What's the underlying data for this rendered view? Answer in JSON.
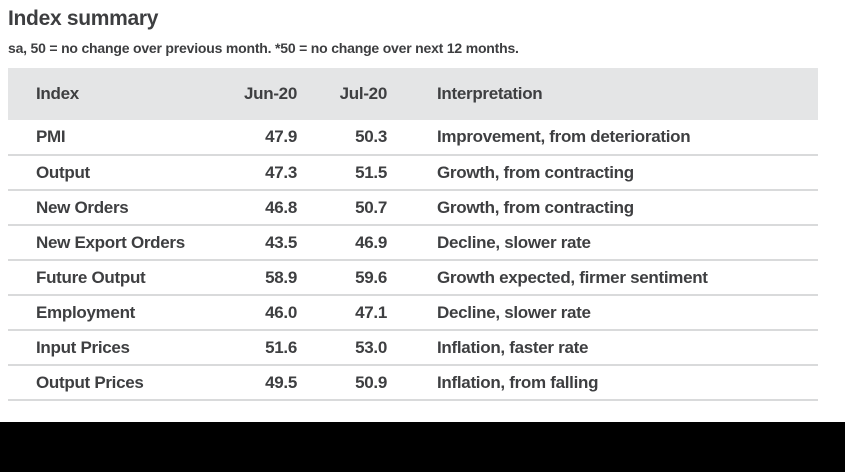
{
  "page": {
    "title": "Index summary",
    "subtitle": "sa, 50 = no change over previous month. *50 = no change over next 12 months."
  },
  "table": {
    "columns": [
      "Index",
      "Jun-20",
      "Jul-20",
      "Interpretation"
    ],
    "rows": [
      {
        "index": "PMI",
        "jun": "47.9",
        "jul": "50.3",
        "interpretation": "Improvement, from deterioration"
      },
      {
        "index": "Output",
        "jun": "47.3",
        "jul": "51.5",
        "interpretation": "Growth, from contracting"
      },
      {
        "index": "New Orders",
        "jun": "46.8",
        "jul": "50.7",
        "interpretation": "Growth, from contracting"
      },
      {
        "index": "New Export Orders",
        "jun": "43.5",
        "jul": "46.9",
        "interpretation": "Decline, slower rate"
      },
      {
        "index": "Future Output",
        "jun": "58.9",
        "jul": "59.6",
        "interpretation": "Growth expected, firmer sentiment"
      },
      {
        "index": "Employment",
        "jun": "46.0",
        "jul": "47.1",
        "interpretation": "Decline, slower rate"
      },
      {
        "index": "Input Prices",
        "jun": "51.6",
        "jul": "53.0",
        "interpretation": "Inflation, faster rate"
      },
      {
        "index": "Output Prices",
        "jun": "49.5",
        "jul": "50.9",
        "interpretation": "Inflation, from falling"
      }
    ]
  },
  "colors": {
    "text": "#3e3f41",
    "header_background": "#e4e5e6",
    "row_divider": "#d9dadb",
    "letterbox": "#000000"
  }
}
